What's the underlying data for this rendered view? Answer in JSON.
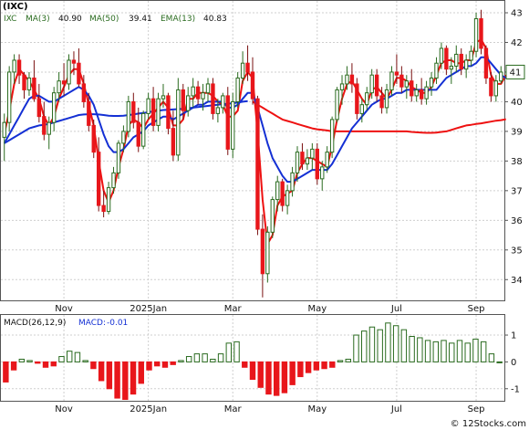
{
  "chart_data": [
    {
      "type": "candlestick",
      "title": "(IXC)",
      "legend_position": "top-left",
      "legend": {
        "symbol": "IXC",
        "ma3_label": "MA(3)",
        "ma3_value": "40.90",
        "ma50_label": "MA(50)",
        "ma50_value": "39.41",
        "ema13_label": "EMA(13)",
        "ema13_value": "40.83"
      },
      "x_tick_labels": [
        "Nov",
        "2025Jan",
        "Mar",
        "May",
        "Jul",
        "Sep"
      ],
      "x_tick_index": [
        12,
        29,
        46,
        63,
        79,
        95
      ],
      "y_ticks": [
        34,
        35,
        36,
        37,
        38,
        39,
        40,
        41,
        42,
        43
      ],
      "ylim": [
        33.3,
        43.4
      ],
      "last_price_label": "41",
      "last_price_value": 41.0,
      "grid": true,
      "colors": {
        "up_candle": "#2a6b1f",
        "down_candle": "#e8161b",
        "ma3": "#ee1111",
        "ma50": "#ee1111",
        "ema13": "#1430d4",
        "ma50_blue": "#1430d4"
      },
      "candles": [
        [
          38.8,
          39.6,
          38.0,
          39.3
        ],
        [
          39.3,
          41.2,
          39.0,
          41.0
        ],
        [
          41.0,
          41.6,
          40.6,
          41.4
        ],
        [
          41.4,
          41.6,
          40.6,
          40.9
        ],
        [
          40.9,
          41.0,
          40.1,
          40.4
        ],
        [
          40.4,
          41.0,
          40.2,
          40.8
        ],
        [
          40.8,
          41.4,
          40.0,
          40.1
        ],
        [
          40.1,
          40.6,
          39.3,
          39.5
        ],
        [
          39.5,
          40.0,
          38.7,
          38.9
        ],
        [
          38.9,
          39.5,
          38.4,
          39.3
        ],
        [
          39.3,
          40.5,
          39.0,
          40.3
        ],
        [
          40.3,
          41.0,
          40.0,
          40.7
        ],
        [
          40.7,
          41.3,
          40.2,
          40.6
        ],
        [
          40.6,
          41.6,
          40.4,
          41.4
        ],
        [
          41.4,
          41.7,
          40.9,
          41.3
        ],
        [
          41.3,
          41.8,
          40.5,
          40.6
        ],
        [
          40.6,
          40.9,
          39.8,
          40.0
        ],
        [
          40.0,
          40.3,
          39.0,
          39.2
        ],
        [
          39.2,
          39.4,
          38.1,
          38.3
        ],
        [
          38.3,
          38.8,
          36.3,
          36.5
        ],
        [
          36.5,
          37.0,
          36.1,
          36.3
        ],
        [
          36.3,
          37.3,
          36.2,
          37.1
        ],
        [
          37.1,
          37.8,
          36.9,
          37.6
        ],
        [
          37.6,
          38.7,
          37.4,
          38.6
        ],
        [
          38.6,
          39.2,
          38.3,
          39.0
        ],
        [
          39.0,
          40.2,
          38.8,
          40.0
        ],
        [
          40.0,
          40.3,
          39.1,
          39.3
        ],
        [
          39.3,
          39.8,
          38.3,
          38.5
        ],
        [
          38.5,
          39.7,
          38.4,
          39.6
        ],
        [
          39.6,
          40.3,
          39.4,
          40.1
        ],
        [
          40.1,
          40.5,
          39.0,
          39.2
        ],
        [
          39.2,
          40.3,
          39.0,
          40.1
        ],
        [
          40.1,
          40.6,
          39.8,
          40.2
        ],
        [
          40.2,
          40.3,
          38.9,
          39.1
        ],
        [
          39.1,
          39.7,
          38.0,
          38.2
        ],
        [
          38.2,
          40.8,
          38.0,
          40.4
        ],
        [
          40.4,
          40.6,
          39.4,
          39.7
        ],
        [
          39.7,
          40.5,
          39.5,
          40.2
        ],
        [
          40.2,
          40.8,
          39.8,
          40.5
        ],
        [
          40.5,
          40.7,
          39.9,
          40.1
        ],
        [
          40.1,
          40.6,
          39.7,
          40.3
        ],
        [
          40.3,
          40.8,
          40.0,
          40.6
        ],
        [
          40.6,
          40.8,
          39.4,
          39.6
        ],
        [
          39.6,
          40.1,
          39.3,
          39.8
        ],
        [
          39.8,
          40.3,
          39.6,
          40.2
        ],
        [
          40.2,
          40.5,
          38.2,
          38.4
        ],
        [
          38.4,
          40.3,
          38.1,
          40.0
        ],
        [
          40.0,
          41.0,
          39.8,
          40.8
        ],
        [
          40.8,
          41.7,
          40.6,
          41.3
        ],
        [
          41.3,
          41.9,
          40.7,
          41.0
        ],
        [
          41.0,
          41.5,
          39.9,
          40.1
        ],
        [
          40.1,
          40.2,
          35.5,
          35.7
        ],
        [
          35.7,
          36.2,
          33.4,
          34.2
        ],
        [
          34.2,
          35.8,
          33.9,
          35.6
        ],
        [
          35.6,
          36.8,
          35.4,
          36.7
        ],
        [
          36.7,
          37.5,
          36.3,
          37.3
        ],
        [
          37.3,
          37.4,
          36.3,
          36.5
        ],
        [
          36.5,
          37.2,
          36.2,
          37.0
        ],
        [
          37.0,
          37.8,
          36.8,
          37.6
        ],
        [
          37.6,
          38.5,
          37.3,
          38.3
        ],
        [
          38.3,
          38.6,
          37.7,
          37.9
        ],
        [
          37.9,
          38.4,
          37.7,
          38.1
        ],
        [
          38.1,
          38.6,
          37.7,
          38.4
        ],
        [
          38.4,
          38.6,
          37.2,
          37.4
        ],
        [
          37.4,
          38.0,
          37.0,
          37.8
        ],
        [
          37.8,
          38.5,
          37.6,
          38.3
        ],
        [
          38.3,
          39.5,
          38.1,
          39.4
        ],
        [
          39.4,
          40.5,
          39.3,
          40.4
        ],
        [
          40.4,
          40.9,
          39.9,
          40.6
        ],
        [
          40.6,
          41.2,
          40.4,
          40.9
        ],
        [
          40.9,
          41.3,
          40.3,
          40.6
        ],
        [
          40.6,
          40.8,
          39.4,
          39.6
        ],
        [
          39.6,
          40.1,
          39.3,
          39.9
        ],
        [
          39.9,
          40.5,
          39.7,
          40.3
        ],
        [
          40.3,
          41.1,
          40.1,
          40.9
        ],
        [
          40.9,
          41.1,
          40.0,
          40.2
        ],
        [
          40.2,
          40.5,
          39.6,
          39.8
        ],
        [
          39.8,
          40.6,
          39.6,
          40.4
        ],
        [
          40.4,
          41.2,
          40.2,
          41.0
        ],
        [
          41.0,
          41.6,
          40.6,
          40.9
        ],
        [
          40.9,
          41.2,
          40.3,
          40.5
        ],
        [
          40.5,
          40.9,
          40.1,
          40.7
        ],
        [
          40.7,
          41.1,
          40.0,
          40.2
        ],
        [
          40.2,
          40.6,
          40.0,
          40.4
        ],
        [
          40.4,
          40.8,
          39.9,
          40.1
        ],
        [
          40.1,
          40.7,
          39.9,
          40.5
        ],
        [
          40.5,
          41.0,
          40.2,
          40.8
        ],
        [
          40.8,
          41.5,
          40.6,
          41.3
        ],
        [
          41.3,
          42.0,
          41.1,
          41.8
        ],
        [
          41.8,
          41.9,
          40.9,
          41.1
        ],
        [
          41.1,
          41.5,
          40.6,
          41.2
        ],
        [
          41.2,
          41.9,
          41.0,
          41.6
        ],
        [
          41.6,
          41.8,
          40.9,
          41.1
        ],
        [
          41.1,
          41.6,
          40.8,
          41.4
        ],
        [
          41.4,
          41.9,
          41.2,
          41.7
        ],
        [
          41.7,
          43.0,
          41.5,
          42.8
        ],
        [
          42.8,
          43.1,
          41.6,
          41.8
        ],
        [
          41.8,
          41.9,
          40.6,
          40.8
        ],
        [
          40.8,
          41.0,
          40.0,
          40.2
        ],
        [
          40.2,
          40.9,
          40.0,
          40.7
        ],
        [
          40.7,
          41.2,
          40.6,
          41.0
        ]
      ],
      "ema13": [
        38.6,
        38.9,
        39.2,
        39.5,
        39.8,
        40.1,
        40.2,
        40.2,
        40.1,
        40.0,
        40.0,
        40.1,
        40.2,
        40.3,
        40.4,
        40.5,
        40.4,
        40.2,
        39.9,
        39.4,
        38.9,
        38.5,
        38.3,
        38.3,
        38.4,
        38.6,
        38.8,
        38.9,
        39.0,
        39.2,
        39.3,
        39.4,
        39.5,
        39.5,
        39.4,
        39.5,
        39.6,
        39.7,
        39.8,
        39.9,
        39.9,
        40.0,
        40.0,
        40.0,
        40.0,
        39.8,
        39.8,
        39.9,
        40.1,
        40.3,
        40.3,
        39.8,
        39.2,
        38.6,
        38.1,
        37.8,
        37.5,
        37.3,
        37.3,
        37.4,
        37.5,
        37.6,
        37.7,
        37.7,
        37.7,
        37.7,
        37.9,
        38.2,
        38.5,
        38.8,
        39.1,
        39.3,
        39.5,
        39.7,
        39.9,
        40.0,
        40.1,
        40.1,
        40.2,
        40.3,
        40.3,
        40.4,
        40.4,
        40.4,
        40.4,
        40.4,
        40.4,
        40.4,
        40.6,
        40.8,
        40.9,
        41.0,
        41.1,
        41.2,
        41.2,
        41.3,
        41.5,
        41.5,
        41.3,
        41.1,
        40.9,
        40.8
      ],
      "ma3": [
        38.9,
        39.7,
        40.6,
        41.1,
        40.9,
        40.7,
        40.4,
        40.1,
        39.5,
        39.2,
        39.5,
        40.1,
        40.5,
        40.9,
        41.1,
        41.1,
        40.6,
        39.9,
        39.2,
        38.0,
        37.0,
        36.6,
        37.0,
        37.8,
        38.4,
        39.2,
        39.4,
        39.3,
        39.1,
        39.4,
        39.6,
        39.8,
        40.0,
        39.8,
        39.2,
        39.2,
        39.4,
        40.1,
        40.1,
        40.3,
        40.3,
        40.3,
        40.2,
        40.0,
        39.9,
        39.5,
        39.5,
        39.7,
        40.7,
        41.0,
        40.8,
        39.0,
        36.7,
        35.2,
        35.5,
        36.5,
        36.8,
        36.9,
        37.0,
        37.6,
        37.9,
        38.1,
        38.1,
        38.0,
        37.9,
        37.8,
        38.5,
        39.4,
        40.1,
        40.6,
        40.7,
        40.4,
        40.1,
        39.9,
        40.4,
        40.5,
        40.3,
        40.1,
        40.4,
        40.8,
        40.8,
        40.7,
        40.5,
        40.4,
        40.3,
        40.3,
        40.5,
        40.9,
        41.3,
        41.4,
        41.4,
        41.3,
        41.3,
        41.4,
        41.4,
        42.0,
        42.1,
        41.8,
        40.9,
        40.6,
        40.6,
        40.9
      ],
      "ma50": [
        null,
        null,
        null,
        null,
        null,
        null,
        null,
        null,
        null,
        null,
        null,
        null,
        null,
        null,
        null,
        null,
        null,
        null,
        null,
        null,
        null,
        null,
        null,
        null,
        null,
        null,
        null,
        null,
        null,
        null,
        null,
        null,
        null,
        null,
        null,
        null,
        null,
        null,
        null,
        null,
        null,
        null,
        null,
        null,
        null,
        null,
        null,
        null,
        null,
        null,
        40.0,
        39.9,
        39.8,
        39.7,
        39.6,
        39.5,
        39.4,
        39.35,
        39.3,
        39.25,
        39.2,
        39.15,
        39.1,
        39.07,
        39.05,
        39.03,
        39.0,
        39.0,
        39.0,
        39.0,
        39.0,
        39.0,
        39.0,
        39.0,
        39.0,
        39.0,
        39.0,
        39.0,
        39.0,
        39.0,
        39.0,
        39.0,
        38.98,
        38.97,
        38.96,
        38.95,
        38.95,
        38.96,
        38.98,
        39.0,
        39.05,
        39.1,
        39.15,
        39.2,
        39.22,
        39.25,
        39.27,
        39.3,
        39.33,
        39.36,
        39.38,
        39.41
      ],
      "ma50_blue": [
        38.6,
        38.7,
        38.8,
        38.9,
        39.0,
        39.1,
        39.15,
        39.2,
        39.22,
        39.25,
        39.3,
        39.35,
        39.4,
        39.45,
        39.5,
        39.55,
        39.57,
        39.58,
        39.58,
        39.57,
        39.55,
        39.53,
        39.52,
        39.52,
        39.53,
        39.55,
        39.57,
        39.6,
        39.62,
        39.65,
        39.67,
        39.7,
        39.72,
        39.73,
        39.74,
        39.75,
        39.76,
        39.78,
        39.8,
        39.82,
        39.84,
        39.86,
        39.88,
        39.9,
        39.92,
        39.93,
        39.95,
        39.97,
        40.0,
        40.02,
        null,
        null,
        null,
        null,
        null,
        null,
        null,
        null,
        null,
        null,
        null,
        null,
        null,
        null,
        null,
        null,
        null,
        null,
        null,
        null,
        null,
        null,
        null,
        null,
        null,
        null,
        null,
        null,
        null,
        null,
        null,
        null,
        null,
        null,
        null,
        null,
        null,
        null,
        null,
        null,
        null,
        null,
        null,
        null,
        null,
        null,
        null,
        null,
        null,
        null,
        null,
        null
      ]
    },
    {
      "type": "bar",
      "title": "MACD(26,12,9)",
      "legend_position": "top-left",
      "legend": {
        "label": "MACD(26,12,9)",
        "macd_label": "MACD:",
        "macd_value": "-0.01"
      },
      "x_tick_labels": [
        "Nov",
        "2025Jan",
        "Mar",
        "May",
        "Jul",
        "Sep"
      ],
      "y_ticks": [
        -1,
        0,
        1
      ],
      "ylim": [
        -1.45,
        1.75
      ],
      "colors": {
        "positive": "#2a6b1f",
        "negative": "#e8161b"
      },
      "values": [
        -0.75,
        -0.3,
        0.1,
        0.05,
        -0.05,
        -0.2,
        -0.15,
        0.2,
        0.4,
        0.35,
        0.05,
        -0.25,
        -0.7,
        -1.0,
        -1.35,
        -1.4,
        -1.2,
        -0.8,
        -0.3,
        -0.15,
        -0.2,
        -0.1,
        0.05,
        0.2,
        0.3,
        0.3,
        0.1,
        0.3,
        0.7,
        0.75,
        -0.2,
        -0.65,
        -0.95,
        -1.2,
        -1.25,
        -1.15,
        -0.85,
        -0.55,
        -0.4,
        -0.3,
        -0.25,
        -0.2,
        0.05,
        0.1,
        1.0,
        1.15,
        1.3,
        1.2,
        1.45,
        1.35,
        1.2,
        0.95,
        0.9,
        0.8,
        0.75,
        0.8,
        0.7,
        0.8,
        0.7,
        0.85,
        0.75,
        0.3,
        0.0
      ]
    }
  ],
  "watermark": "© 12Stocks.com"
}
